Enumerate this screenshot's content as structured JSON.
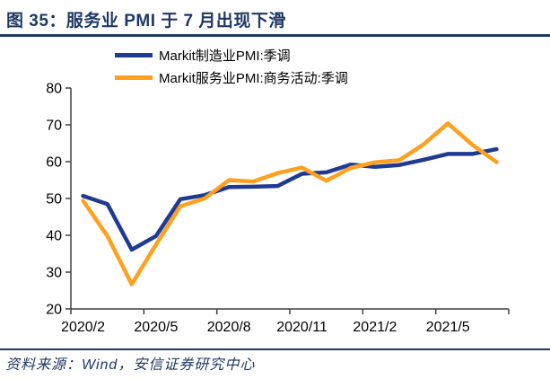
{
  "header": {
    "title": "图 35：服务业 PMI 于 7 月出现下滑"
  },
  "footer": {
    "source": "资料来源：Wind，安信证券研究中心"
  },
  "colors": {
    "accent_navy": "#1F3864",
    "manufacturing_line": "#1F3A93",
    "services_line": "#FFA01E",
    "axis_line": "#404040",
    "label_text": "#000000"
  },
  "chart_data": {
    "type": "line",
    "title": "服务业 PMI 于 7 月出现下滑",
    "xlabel": "",
    "ylabel": "",
    "ylim": [
      20,
      80
    ],
    "ytick_step": 10,
    "ytick_labels": [
      "20",
      "30",
      "40",
      "50",
      "60",
      "70",
      "80"
    ],
    "xtick_labels": [
      "2020/2",
      "2020/5",
      "2020/8",
      "2020/11",
      "2021/2",
      "2021/5"
    ],
    "grid": false,
    "legend_position": "top",
    "categories": [
      "2020/2",
      "2020/3",
      "2020/4",
      "2020/5",
      "2020/6",
      "2020/7",
      "2020/8",
      "2020/9",
      "2020/10",
      "2020/11",
      "2020/12",
      "2021/1",
      "2021/2",
      "2021/3",
      "2021/4",
      "2021/5",
      "2021/6",
      "2021/7"
    ],
    "series": [
      {
        "name": "Markit制造业PMI:季调",
        "color_key": "manufacturing_line",
        "values": [
          50.7,
          48.5,
          36.1,
          39.8,
          49.8,
          50.9,
          53.1,
          53.2,
          53.4,
          56.7,
          57.1,
          59.2,
          58.6,
          59.1,
          60.5,
          62.1,
          62.1,
          63.4
        ]
      },
      {
        "name": "Markit服务业PMI:商务活动:季调",
        "color_key": "services_line",
        "values": [
          49.4,
          39.8,
          26.7,
          37.5,
          47.9,
          50.0,
          55.0,
          54.6,
          56.9,
          58.4,
          54.8,
          58.3,
          59.8,
          60.4,
          64.7,
          70.4,
          64.6,
          59.9
        ]
      }
    ]
  }
}
